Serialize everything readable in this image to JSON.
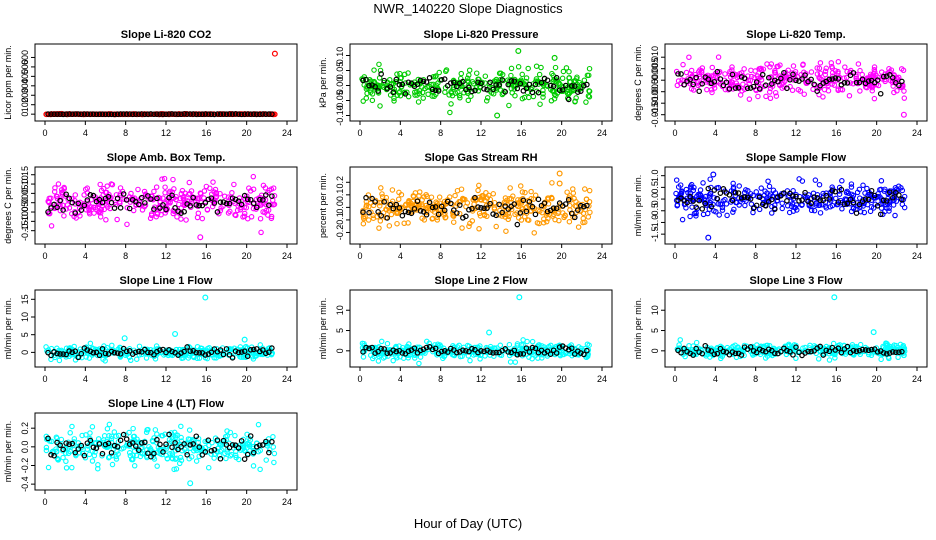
{
  "page": {
    "title": "NWR_140220  Slope Diagnostics",
    "x_axis_label": "Hour of Day (UTC)"
  },
  "chart_data": [
    {
      "type": "scatter",
      "title": "Slope Li-820 CO2",
      "ylabel": "Licor ppm per min.",
      "xlim": [
        0,
        24
      ],
      "ylim": [
        -30,
        700
      ],
      "yticks": [
        "0",
        "100",
        "200",
        "300",
        "400",
        "500",
        "600"
      ],
      "ytick_values": [
        0,
        100,
        200,
        300,
        400,
        500,
        600
      ],
      "xticks": [
        0,
        4,
        8,
        12,
        16,
        20,
        24
      ],
      "color": "#ff0000",
      "spread": 3,
      "outliers": [
        {
          "x": 22.8,
          "y": 640
        }
      ],
      "seed": 11
    },
    {
      "type": "scatter",
      "title": "Slope Li-820 Pressure",
      "ylabel": "kPa per min.",
      "xlim": [
        0,
        24
      ],
      "ylim": [
        -0.105,
        0.125
      ],
      "yticks": [
        "-0.10",
        "-0.05",
        "0.00",
        "0.05",
        "0.10"
      ],
      "ytick_values": [
        -0.1,
        -0.05,
        0.0,
        0.05,
        0.1
      ],
      "xticks": [
        0,
        4,
        8,
        12,
        16,
        20,
        24
      ],
      "color": "#00cc00",
      "spread": 0.045,
      "outliers": [
        {
          "x": 13.6,
          "y": -0.1
        },
        {
          "x": 19.3,
          "y": 0.092
        },
        {
          "x": 15.7,
          "y": 0.115
        }
      ],
      "seed": 23
    },
    {
      "type": "scatter",
      "title": "Slope Li-820 Temp.",
      "ylabel": "degrees C per min.",
      "xlim": [
        0,
        24
      ],
      "ylim": [
        -0.016,
        0.014
      ],
      "yticks": [
        "-0.015",
        "-0.010",
        "-0.005",
        "0.000",
        "0.005",
        "0.010"
      ],
      "ytick_values": [
        -0.015,
        -0.01,
        -0.005,
        0.0,
        0.005,
        0.01
      ],
      "xticks": [
        0,
        4,
        8,
        12,
        16,
        20,
        24
      ],
      "color": "#ff00ff",
      "spread": 0.006,
      "outliers": [
        {
          "x": 22.7,
          "y": -0.015
        }
      ],
      "seed": 37
    },
    {
      "type": "scatter",
      "title": "Slope Amb. Box Temp.",
      "ylabel": "degrees C per min.",
      "xlim": [
        0,
        24
      ],
      "ylim": [
        -0.2,
        0.17
      ],
      "yticks": [
        "-0.15",
        "-0.10",
        "-0.05",
        "0.00",
        "0.05",
        "0.10",
        "0.15"
      ],
      "ytick_values": [
        -0.15,
        -0.1,
        -0.05,
        0.0,
        0.05,
        0.1,
        0.15
      ],
      "xticks": [
        0,
        4,
        8,
        12,
        16,
        20,
        24
      ],
      "color": "#ff00ff",
      "spread": 0.09,
      "outliers": [
        {
          "x": 15.4,
          "y": -0.185
        }
      ],
      "seed": 41
    },
    {
      "type": "scatter",
      "title": "Slope Gas Stream RH",
      "ylabel": "percent per min.",
      "xlim": [
        0,
        24
      ],
      "ylim": [
        -0.26,
        0.29
      ],
      "yticks": [
        "-0.2",
        "-0.1",
        "0.0",
        "0.1",
        "0.2"
      ],
      "ytick_values": [
        -0.2,
        -0.1,
        0.0,
        0.1,
        0.2
      ],
      "xticks": [
        0,
        4,
        8,
        12,
        16,
        20,
        24
      ],
      "color": "#ff9900",
      "spread": 0.13,
      "outliers": [
        {
          "x": 19.8,
          "y": 0.27
        },
        {
          "x": 19.8,
          "y": 0.19
        }
      ],
      "seed": 53
    },
    {
      "type": "scatter",
      "title": "Slope Sample Flow",
      "ylabel": "ml/min per min.",
      "xlim": [
        0,
        24
      ],
      "ylim": [
        -1.75,
        1.2
      ],
      "yticks": [
        "-1.5",
        "-1.0",
        "-0.5",
        "0.0",
        "0.5",
        "1.0"
      ],
      "ytick_values": [
        -1.5,
        -1.0,
        -0.5,
        0.0,
        0.5,
        1.0
      ],
      "xticks": [
        0,
        4,
        8,
        12,
        16,
        20,
        24
      ],
      "color": "#0000ff",
      "spread": 0.55,
      "outliers": [
        {
          "x": 3.3,
          "y": -1.65
        },
        {
          "x": 3.8,
          "y": 1.05
        }
      ],
      "seed": 67
    },
    {
      "type": "scatter",
      "title": "Slope Line 1 Flow",
      "ylabel": "ml/min per min.",
      "xlim": [
        0,
        24
      ],
      "ylim": [
        -3,
        16.5
      ],
      "yticks": [
        "0",
        "5",
        "10",
        "15"
      ],
      "ytick_values": [
        0,
        5,
        10,
        15
      ],
      "xticks": [
        0,
        4,
        8,
        12,
        16,
        20,
        24
      ],
      "color": "#00ffff",
      "spread": 1.6,
      "outliers": [
        {
          "x": 15.9,
          "y": 15.5
        },
        {
          "x": 12.9,
          "y": 5.2
        },
        {
          "x": 7.9,
          "y": 4.0
        },
        {
          "x": 19.8,
          "y": 3.6
        }
      ],
      "seed": 71
    },
    {
      "type": "scatter",
      "title": "Slope Line 2 Flow",
      "ylabel": "ml/min per min.",
      "xlim": [
        0,
        24
      ],
      "ylim": [
        -3,
        14
      ],
      "yticks": [
        "0",
        "5",
        "10"
      ],
      "ytick_values": [
        0,
        5,
        10
      ],
      "xticks": [
        0,
        4,
        8,
        12,
        16,
        20,
        24
      ],
      "color": "#00ffff",
      "spread": 1.7,
      "outliers": [
        {
          "x": 15.8,
          "y": 13.2
        },
        {
          "x": 12.8,
          "y": 4.5
        }
      ],
      "seed": 83
    },
    {
      "type": "scatter",
      "title": "Slope Line 3 Flow",
      "ylabel": "ml/min per min.",
      "xlim": [
        0,
        24
      ],
      "ylim": [
        -3,
        14
      ],
      "yticks": [
        "0",
        "5",
        "10"
      ],
      "ytick_values": [
        0,
        5,
        10
      ],
      "xticks": [
        0,
        4,
        8,
        12,
        16,
        20,
        24
      ],
      "color": "#00ffff",
      "spread": 1.6,
      "outliers": [
        {
          "x": 15.8,
          "y": 13.2
        },
        {
          "x": 19.7,
          "y": 4.6
        }
      ],
      "seed": 97
    },
    {
      "type": "scatter",
      "title": "Slope Line 4 (LT) Flow",
      "ylabel": "ml/min per min.",
      "xlim": [
        0,
        24
      ],
      "ylim": [
        -0.42,
        0.32
      ],
      "yticks": [
        "-0.4",
        "-0.2",
        "0.0",
        "0.2"
      ],
      "ytick_values": [
        -0.4,
        -0.2,
        0.0,
        0.2
      ],
      "xticks": [
        0,
        4,
        8,
        12,
        16,
        20,
        24
      ],
      "color": "#00ffff",
      "spread": 0.17,
      "outliers": [
        {
          "x": 14.4,
          "y": -0.39
        }
      ],
      "seed": 101
    }
  ]
}
